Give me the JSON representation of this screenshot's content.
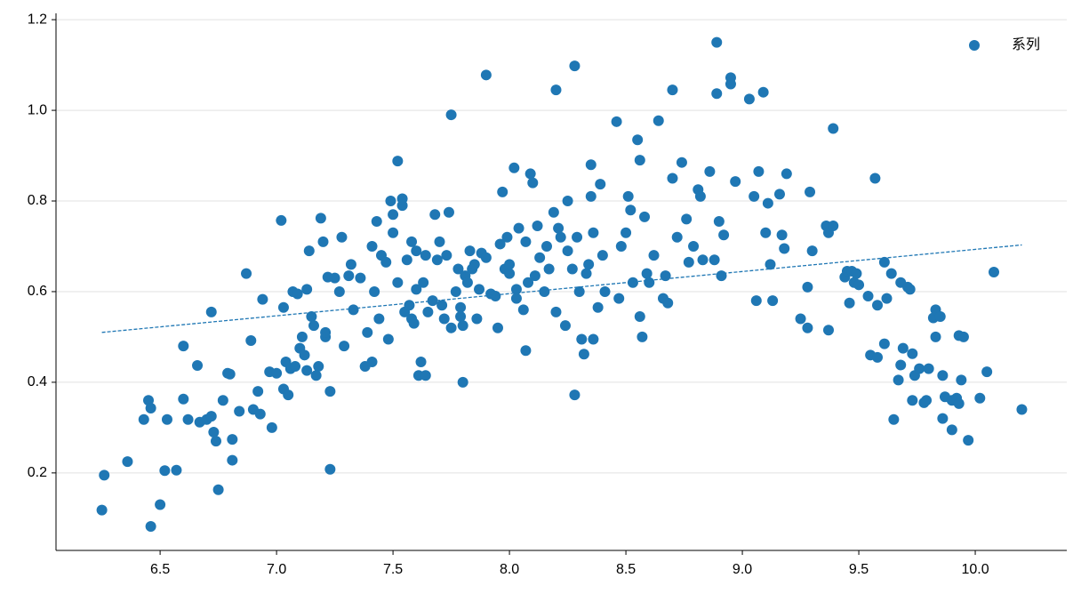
{
  "chart_data": {
    "type": "scatter",
    "xlim": [
      6.053,
      10.393
    ],
    "ylim": [
      0.029,
      1.214
    ],
    "xticks": [
      6.5,
      {
        "value": 7,
        "label": "7.0"
      },
      7.5,
      {
        "value": 8,
        "label": "8.0"
      },
      8.5,
      {
        "value": 9,
        "label": "9.0"
      },
      9.5,
      {
        "value": 10,
        "label": "10.0"
      }
    ],
    "yticks": [
      0.2,
      0.4,
      0.6,
      0.8,
      {
        "value": 1,
        "label": "1.0"
      },
      1.2
    ],
    "grid": true,
    "legend": "upper right",
    "x": [
      6.25,
      6.26,
      6.36,
      6.43,
      6.45,
      6.46,
      6.46,
      6.5,
      6.52,
      6.53,
      6.57,
      6.6,
      6.6,
      6.62,
      6.66,
      6.67,
      6.7,
      6.72,
      6.72,
      6.73,
      6.74,
      6.75,
      6.77,
      6.79,
      6.8,
      6.81,
      6.81,
      6.84,
      6.87,
      6.89,
      6.9,
      6.92,
      6.93,
      6.94,
      6.97,
      6.98,
      7.0,
      7.02,
      7.03,
      7.03,
      7.04,
      7.05,
      7.06,
      7.07,
      7.08,
      7.09,
      7.1,
      7.11,
      7.12,
      7.13,
      7.13,
      7.14,
      7.15,
      7.16,
      7.17,
      7.18,
      7.19,
      7.2,
      7.21,
      7.21,
      7.22,
      7.23,
      7.23,
      7.25,
      7.27,
      7.28,
      7.29,
      7.31,
      7.32,
      7.33,
      7.36,
      7.38,
      7.39,
      7.41,
      7.41,
      7.42,
      7.43,
      7.44,
      7.45,
      7.47,
      7.48,
      7.49,
      7.5,
      7.5,
      7.52,
      7.52,
      7.54,
      7.54,
      7.55,
      7.56,
      7.57,
      7.58,
      7.58,
      7.59,
      7.6,
      7.6,
      7.61,
      7.62,
      7.63,
      7.64,
      7.64,
      7.65,
      7.67,
      7.68,
      7.69,
      7.7,
      7.71,
      7.72,
      7.73,
      7.74,
      7.75,
      7.75,
      7.77,
      7.78,
      7.79,
      7.79,
      7.8,
      7.8,
      7.81,
      7.82,
      7.83,
      7.84,
      7.85,
      7.86,
      7.87,
      7.88,
      7.9,
      7.9,
      7.92,
      7.94,
      7.95,
      7.96,
      7.97,
      7.98,
      7.99,
      8.0,
      8.0,
      8.02,
      8.03,
      8.03,
      8.04,
      8.06,
      8.07,
      8.07,
      8.08,
      8.09,
      8.1,
      8.11,
      8.12,
      8.13,
      8.15,
      8.16,
      8.17,
      8.19,
      8.2,
      8.2,
      8.21,
      8.22,
      8.24,
      8.25,
      8.25,
      8.27,
      8.28,
      8.28,
      8.29,
      8.3,
      8.31,
      8.32,
      8.33,
      8.34,
      8.35,
      8.35,
      8.36,
      8.36,
      8.38,
      8.39,
      8.4,
      8.41,
      8.46,
      8.47,
      8.48,
      8.5,
      8.51,
      8.52,
      8.53,
      8.55,
      8.56,
      8.56,
      8.57,
      8.58,
      8.59,
      8.6,
      8.62,
      8.64,
      8.66,
      8.67,
      8.68,
      8.7,
      8.7,
      8.72,
      8.74,
      8.76,
      8.77,
      8.79,
      8.81,
      8.82,
      8.83,
      8.86,
      8.88,
      8.89,
      8.89,
      8.9,
      8.91,
      8.92,
      8.95,
      8.95,
      8.97,
      9.03,
      9.05,
      9.06,
      9.07,
      9.09,
      9.1,
      9.11,
      9.12,
      9.13,
      9.16,
      9.17,
      9.18,
      9.19,
      9.25,
      9.28,
      9.28,
      9.29,
      9.3,
      9.36,
      9.37,
      9.37,
      9.39,
      9.39,
      9.44,
      9.45,
      9.46,
      9.47,
      9.48,
      9.49,
      9.5,
      9.54,
      9.55,
      9.57,
      9.58,
      9.58,
      9.61,
      9.61,
      9.62,
      9.64,
      9.65,
      9.67,
      9.68,
      9.68,
      9.69,
      9.71,
      9.72,
      9.73,
      9.73,
      9.74,
      9.76,
      9.78,
      9.79,
      9.8,
      9.82,
      9.83,
      9.83,
      9.85,
      9.86,
      9.86,
      9.87,
      9.9,
      9.9,
      9.92,
      9.93,
      9.93,
      9.94,
      9.95,
      9.97,
      10.02,
      10.05,
      10.08,
      10.2
    ],
    "series": [
      {
        "name": "系列",
        "color": "#1f77b4",
        "values": [
          0.118,
          0.195,
          0.225,
          0.318,
          0.36,
          0.343,
          0.082,
          0.13,
          0.205,
          0.318,
          0.206,
          0.363,
          0.48,
          0.318,
          0.437,
          0.312,
          0.318,
          0.325,
          0.555,
          0.29,
          0.27,
          0.163,
          0.36,
          0.42,
          0.418,
          0.228,
          0.274,
          0.336,
          0.64,
          0.492,
          0.34,
          0.38,
          0.33,
          0.583,
          0.423,
          0.3,
          0.42,
          0.757,
          0.565,
          0.385,
          0.445,
          0.372,
          0.43,
          0.6,
          0.435,
          0.595,
          0.475,
          0.5,
          0.46,
          0.605,
          0.426,
          0.69,
          0.545,
          0.525,
          0.415,
          0.435,
          0.762,
          0.71,
          0.5,
          0.51,
          0.632,
          0.208,
          0.38,
          0.63,
          0.6,
          0.72,
          0.48,
          0.635,
          0.66,
          0.56,
          0.63,
          0.435,
          0.51,
          0.445,
          0.7,
          0.6,
          0.755,
          0.54,
          0.68,
          0.665,
          0.495,
          0.8,
          0.73,
          0.77,
          0.888,
          0.62,
          0.79,
          0.805,
          0.555,
          0.67,
          0.57,
          0.54,
          0.71,
          0.53,
          0.69,
          0.605,
          0.415,
          0.445,
          0.62,
          0.68,
          0.415,
          0.555,
          0.58,
          0.77,
          0.67,
          0.71,
          0.57,
          0.54,
          0.68,
          0.775,
          0.99,
          0.52,
          0.6,
          0.65,
          0.565,
          0.545,
          0.4,
          0.525,
          0.635,
          0.62,
          0.69,
          0.65,
          0.66,
          0.54,
          0.605,
          0.685,
          1.078,
          0.675,
          0.595,
          0.59,
          0.52,
          0.705,
          0.82,
          0.65,
          0.72,
          0.64,
          0.66,
          0.873,
          0.585,
          0.605,
          0.74,
          0.56,
          0.47,
          0.71,
          0.62,
          0.86,
          0.84,
          0.635,
          0.745,
          0.675,
          0.6,
          0.7,
          0.65,
          0.775,
          1.045,
          0.555,
          0.74,
          0.72,
          0.525,
          0.8,
          0.69,
          0.65,
          0.372,
          1.098,
          0.72,
          0.6,
          0.495,
          0.462,
          0.64,
          0.66,
          0.81,
          0.88,
          0.73,
          0.495,
          0.565,
          0.837,
          0.68,
          0.6,
          0.975,
          0.585,
          0.7,
          0.73,
          0.81,
          0.78,
          0.62,
          0.935,
          0.89,
          0.545,
          0.5,
          0.765,
          0.64,
          0.62,
          0.68,
          0.977,
          0.585,
          0.635,
          0.575,
          1.045,
          0.85,
          0.72,
          0.885,
          0.76,
          0.665,
          0.7,
          0.825,
          0.81,
          0.67,
          0.865,
          0.67,
          1.15,
          1.037,
          0.755,
          0.635,
          0.725,
          1.072,
          1.058,
          0.843,
          1.025,
          0.81,
          0.58,
          0.865,
          1.04,
          0.73,
          0.795,
          0.66,
          0.58,
          0.815,
          0.725,
          0.695,
          0.86,
          0.54,
          0.52,
          0.61,
          0.82,
          0.69,
          0.745,
          0.73,
          0.515,
          0.96,
          0.745,
          0.632,
          0.645,
          0.575,
          0.645,
          0.62,
          0.64,
          0.615,
          0.59,
          0.46,
          0.85,
          0.57,
          0.455,
          0.665,
          0.485,
          0.585,
          0.64,
          0.318,
          0.405,
          0.438,
          0.62,
          0.475,
          0.61,
          0.605,
          0.36,
          0.463,
          0.415,
          0.43,
          0.355,
          0.36,
          0.43,
          0.542,
          0.5,
          0.56,
          0.545,
          0.415,
          0.32,
          0.368,
          0.36,
          0.295,
          0.365,
          0.353,
          0.503,
          0.405,
          0.5,
          0.272,
          0.365,
          0.423,
          0.643,
          0.34
        ]
      }
    ],
    "trendline": {
      "color": "#1f77b4",
      "x": [
        6.25,
        10.2
      ],
      "values": [
        0.51,
        0.703
      ]
    }
  }
}
